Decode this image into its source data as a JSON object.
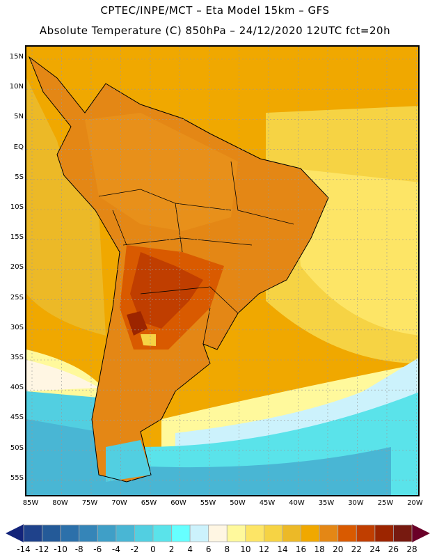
{
  "title": {
    "line1": "CPTEC/INPE/MCT –  Eta Model 15km – GFS",
    "line2": "Absolute Temperature (C) 850hPa – 24/12/2020 12UTC fct=20h"
  },
  "lat_labels": [
    "15N",
    "10N",
    "5N",
    "EQ",
    "5S",
    "10S",
    "15S",
    "20S",
    "25S",
    "30S",
    "35S",
    "40S",
    "45S",
    "50S",
    "55S"
  ],
  "lon_labels": [
    "85W",
    "80W",
    "75W",
    "70W",
    "65W",
    "60W",
    "55W",
    "50W",
    "45W",
    "40W",
    "35W",
    "30W",
    "25W",
    "20W"
  ],
  "colorbar": {
    "labels": [
      "-14",
      "-12",
      "-10",
      "-8",
      "-6",
      "-4",
      "-2",
      "0",
      "2",
      "4",
      "6",
      "8",
      "10",
      "12",
      "14",
      "16",
      "18",
      "20",
      "22",
      "24",
      "26",
      "28"
    ],
    "colors": [
      "#1f428b",
      "#245a98",
      "#2c70aa",
      "#3585b8",
      "#3f9fc7",
      "#49b6d4",
      "#52cfe1",
      "#5ae3ea",
      "#66ffff",
      "#ccf2fc",
      "#fff6e3",
      "#fff99c",
      "#fde566",
      "#f6d344",
      "#ecb927",
      "#f0a800",
      "#e48715",
      "#d95a00",
      "#c03e00",
      "#9c2500",
      "#771a10"
    ],
    "under_color": "#13247a",
    "over_color": "#6a0028"
  }
}
